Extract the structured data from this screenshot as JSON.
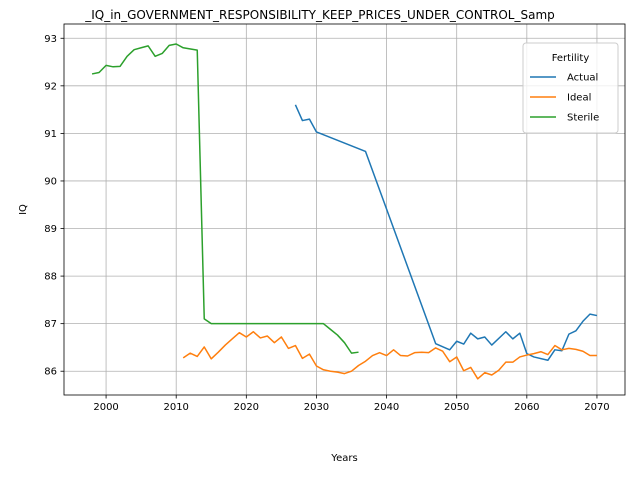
{
  "chart_data": {
    "type": "line",
    "title": "_IQ_in_GOVERNMENT_RESPONSIBILITY_KEEP_PRICES_UNDER_CONTROL_Samp",
    "xlabel": "Years",
    "ylabel": "IQ",
    "xlim": [
      1994,
      2074
    ],
    "ylim": [
      85.5,
      93.3
    ],
    "x_ticks": [
      "2000",
      "2010",
      "2020",
      "2030",
      "2040",
      "2050",
      "2060",
      "2070"
    ],
    "y_ticks": [
      "86",
      "87",
      "88",
      "89",
      "90",
      "91",
      "92",
      "93"
    ],
    "grid": true,
    "legend": {
      "title": "Fertility",
      "placement": "top-right"
    },
    "series": [
      {
        "name": "Actual",
        "color": "#1f77b4",
        "points": [
          [
            2027,
            91.6
          ],
          [
            2028,
            91.27
          ],
          [
            2029,
            91.3
          ],
          [
            2030,
            91.03
          ],
          [
            2037,
            90.62
          ],
          [
            2047,
            86.58
          ],
          [
            2049,
            86.45
          ],
          [
            2050,
            86.63
          ],
          [
            2051,
            86.57
          ],
          [
            2052,
            86.8
          ],
          [
            2053,
            86.68
          ],
          [
            2054,
            86.72
          ],
          [
            2055,
            86.55
          ],
          [
            2057,
            86.83
          ],
          [
            2058,
            86.68
          ],
          [
            2059,
            86.8
          ],
          [
            2060,
            86.37
          ],
          [
            2061,
            86.3
          ],
          [
            2063,
            86.23
          ],
          [
            2064,
            86.45
          ],
          [
            2065,
            86.43
          ],
          [
            2066,
            86.78
          ],
          [
            2067,
            86.85
          ],
          [
            2068,
            87.05
          ],
          [
            2069,
            87.2
          ],
          [
            2070,
            87.17
          ]
        ]
      },
      {
        "name": "Ideal",
        "color": "#ff7f0e",
        "points": [
          [
            2011,
            86.28
          ],
          [
            2012,
            86.38
          ],
          [
            2013,
            86.31
          ],
          [
            2014,
            86.51
          ],
          [
            2015,
            86.26
          ],
          [
            2016,
            86.4
          ],
          [
            2017,
            86.55
          ],
          [
            2018,
            86.68
          ],
          [
            2019,
            86.81
          ],
          [
            2020,
            86.72
          ],
          [
            2021,
            86.83
          ],
          [
            2022,
            86.7
          ],
          [
            2023,
            86.74
          ],
          [
            2024,
            86.6
          ],
          [
            2025,
            86.72
          ],
          [
            2026,
            86.48
          ],
          [
            2027,
            86.54
          ],
          [
            2028,
            86.27
          ],
          [
            2029,
            86.36
          ],
          [
            2030,
            86.11
          ],
          [
            2031,
            86.03
          ],
          [
            2032,
            86.0
          ],
          [
            2033,
            85.98
          ],
          [
            2034,
            85.95
          ],
          [
            2035,
            86.0
          ],
          [
            2036,
            86.12
          ],
          [
            2037,
            86.21
          ],
          [
            2038,
            86.33
          ],
          [
            2039,
            86.39
          ],
          [
            2040,
            86.33
          ],
          [
            2041,
            86.45
          ],
          [
            2042,
            86.33
          ],
          [
            2043,
            86.32
          ],
          [
            2044,
            86.39
          ],
          [
            2045,
            86.4
          ],
          [
            2046,
            86.39
          ],
          [
            2047,
            86.49
          ],
          [
            2048,
            86.42
          ],
          [
            2049,
            86.2
          ],
          [
            2050,
            86.3
          ],
          [
            2051,
            86.01
          ],
          [
            2052,
            86.08
          ],
          [
            2053,
            85.84
          ],
          [
            2054,
            85.97
          ],
          [
            2055,
            85.92
          ],
          [
            2056,
            86.02
          ],
          [
            2057,
            86.19
          ],
          [
            2058,
            86.19
          ],
          [
            2059,
            86.3
          ],
          [
            2060,
            86.34
          ],
          [
            2061,
            86.37
          ],
          [
            2062,
            86.41
          ],
          [
            2063,
            86.35
          ],
          [
            2064,
            86.54
          ],
          [
            2065,
            86.45
          ],
          [
            2066,
            86.48
          ],
          [
            2067,
            86.46
          ],
          [
            2068,
            86.42
          ],
          [
            2069,
            86.33
          ],
          [
            2070,
            86.33
          ]
        ]
      },
      {
        "name": "Sterile",
        "color": "#2ca02c",
        "points": [
          [
            1998,
            92.25
          ],
          [
            1999,
            92.28
          ],
          [
            2000,
            92.43
          ],
          [
            2001,
            92.4
          ],
          [
            2002,
            92.41
          ],
          [
            2003,
            92.62
          ],
          [
            2004,
            92.76
          ],
          [
            2005,
            92.8
          ],
          [
            2006,
            92.84
          ],
          [
            2007,
            92.62
          ],
          [
            2008,
            92.68
          ],
          [
            2009,
            92.85
          ],
          [
            2010,
            92.88
          ],
          [
            2011,
            92.8
          ],
          [
            2013,
            92.75
          ],
          [
            2014,
            87.1
          ],
          [
            2015,
            87.0
          ],
          [
            2020,
            87.0
          ],
          [
            2025,
            87.0
          ],
          [
            2031,
            87.0
          ],
          [
            2032,
            86.88
          ],
          [
            2033,
            86.76
          ],
          [
            2034,
            86.6
          ],
          [
            2035,
            86.38
          ],
          [
            2036,
            86.4
          ]
        ]
      }
    ]
  }
}
